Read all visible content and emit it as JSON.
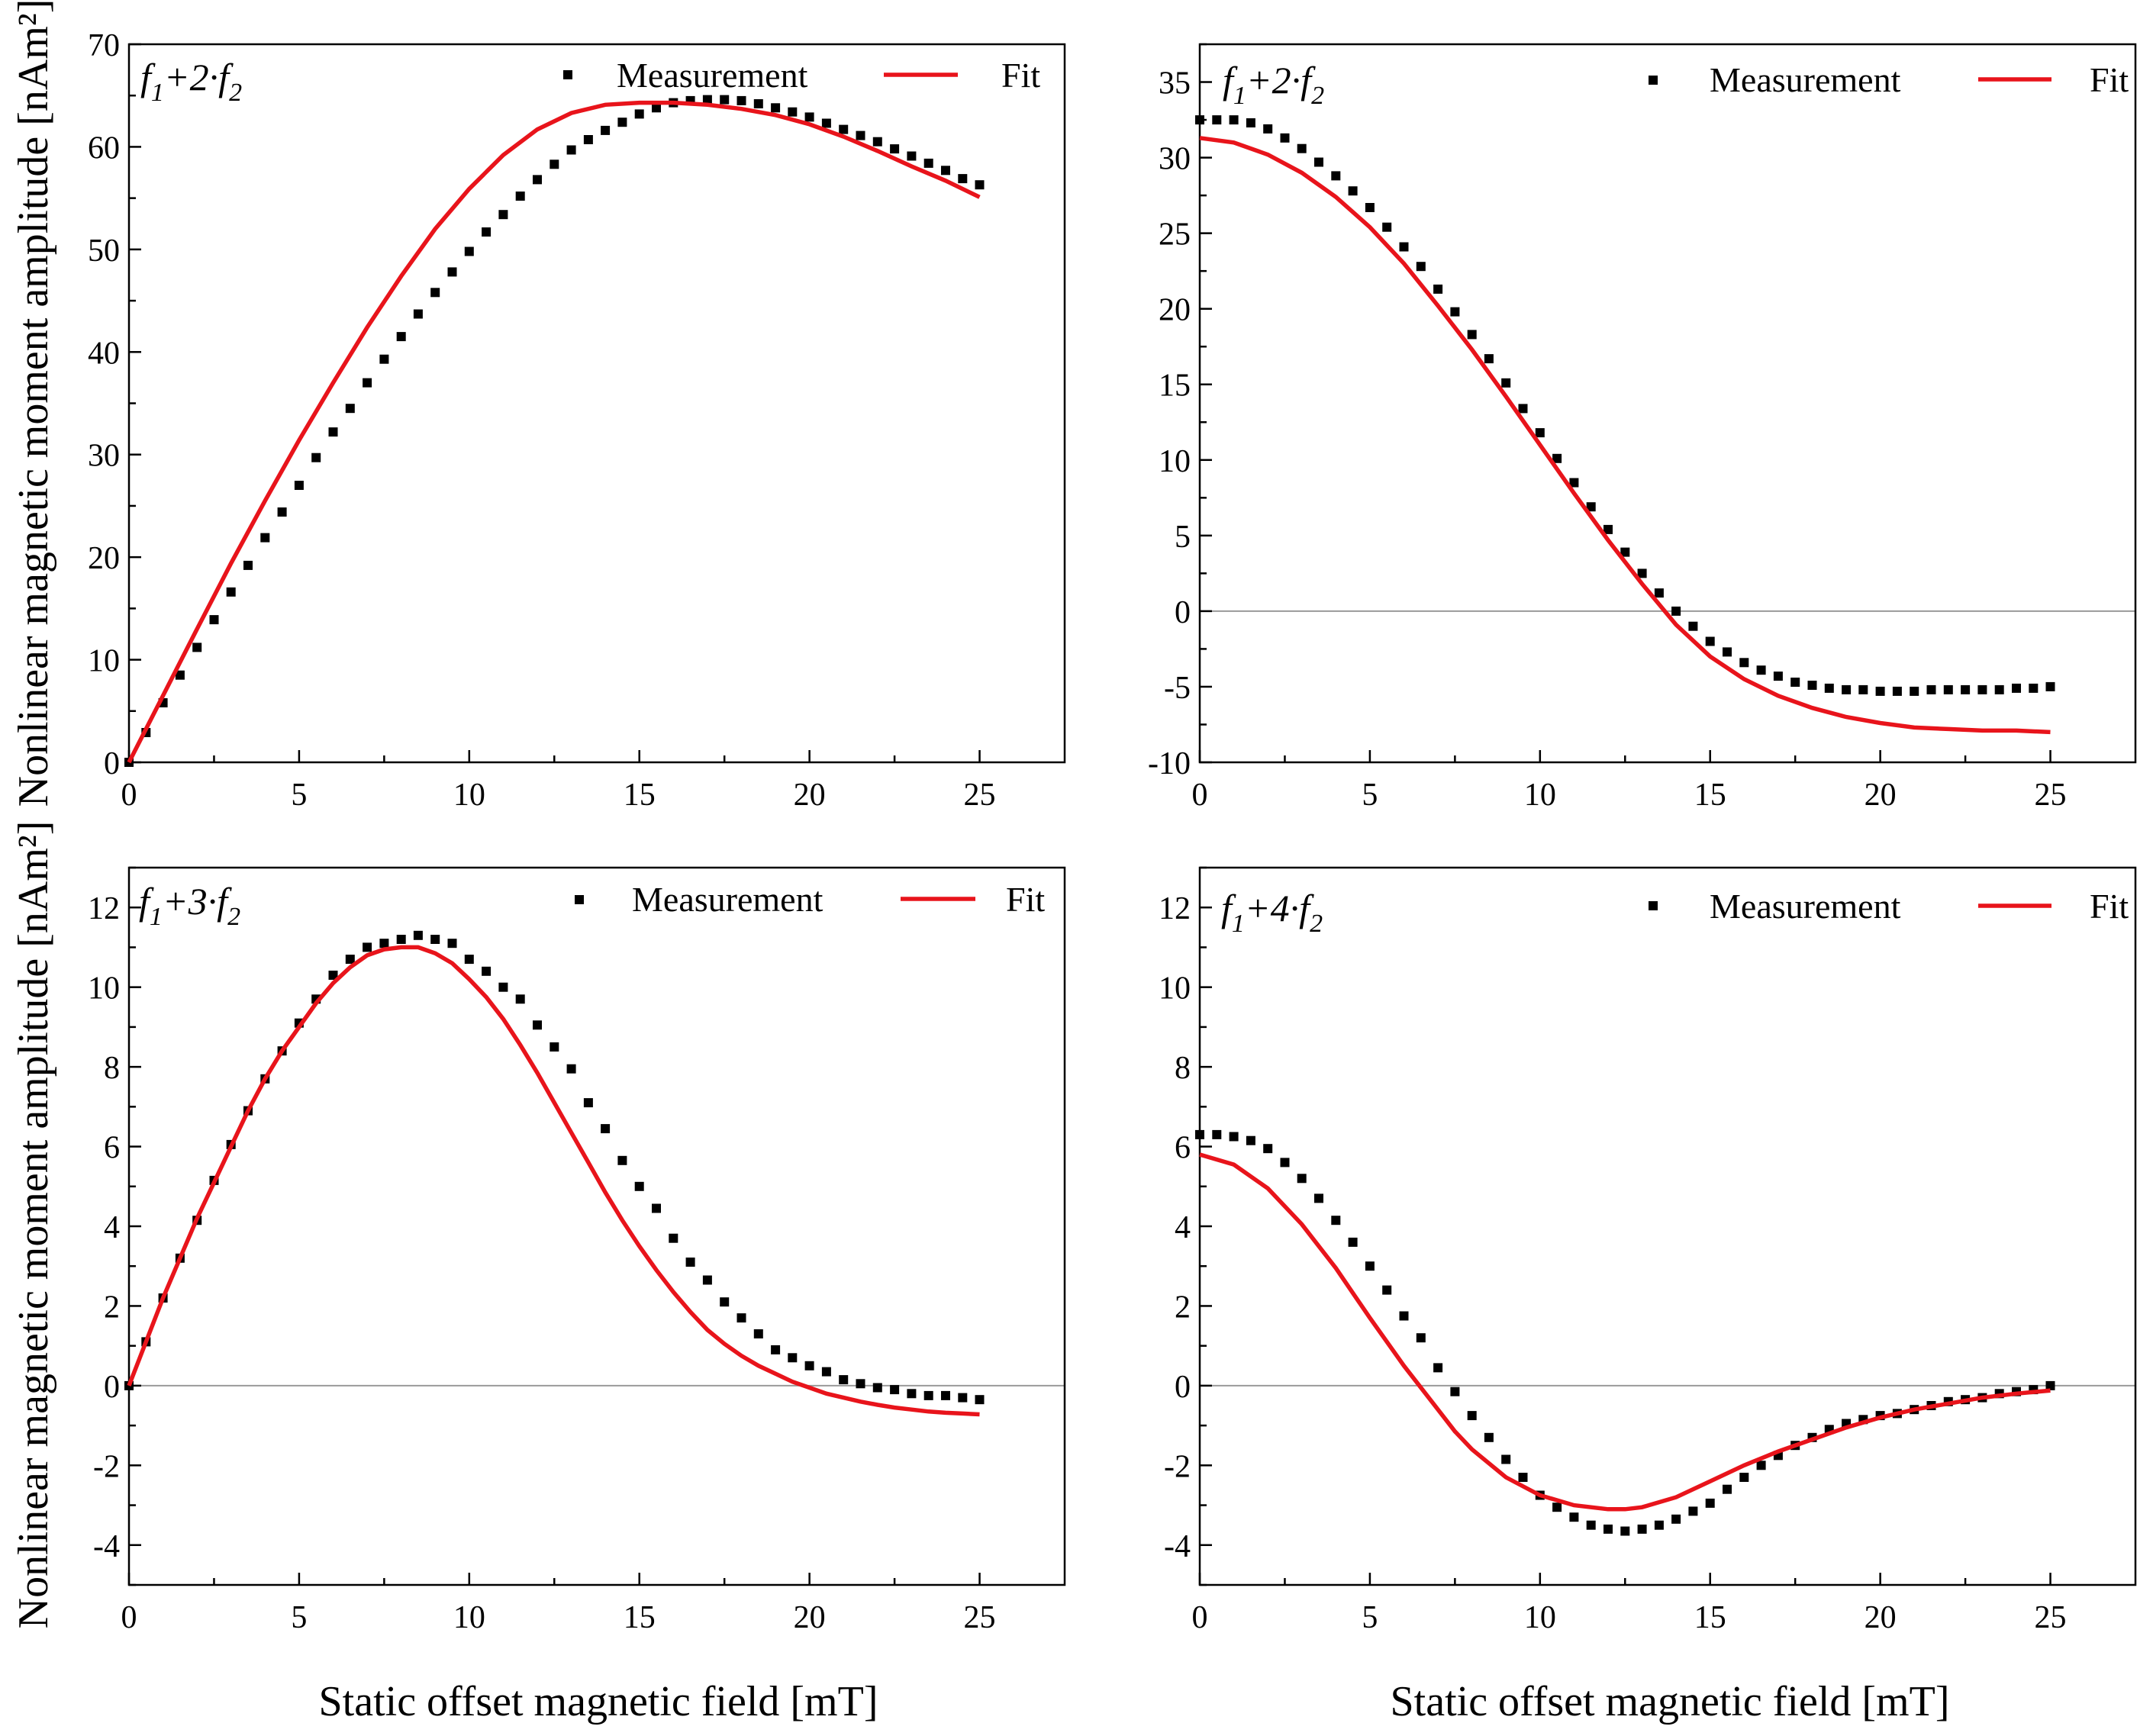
{
  "colors": {
    "measurement": "#000000",
    "fit": "#e8141b",
    "zero_line": "#9a9a9a"
  },
  "legend": {
    "measurement": "Measurement",
    "fit": "Fit"
  },
  "labels": {
    "ylabel": "Nonlinear magnetic moment amplitude [nAm²]",
    "xlabel": "Static offset magnetic field [mT]"
  },
  "chart_data": [
    {
      "id": "p1",
      "type": "scatter",
      "title": {
        "f1": "f",
        "s1": "1",
        "mid": "+2·",
        "f2": "f",
        "s2": "2"
      },
      "xlim": [
        0,
        27.5
      ],
      "ylim": [
        0,
        70
      ],
      "xticks": [
        0,
        5,
        10,
        15,
        20,
        25
      ],
      "yticks": [
        0,
        10,
        20,
        30,
        40,
        50,
        60,
        70
      ],
      "zero_line": false,
      "legend_position": "top-right",
      "series": [
        {
          "name": "Measurement",
          "kind": "points",
          "x": [
            0,
            0.5,
            1,
            1.5,
            2,
            2.5,
            3,
            3.5,
            4,
            4.5,
            5,
            5.5,
            6,
            6.5,
            7,
            7.5,
            8,
            8.5,
            9,
            9.5,
            10,
            10.5,
            11,
            11.5,
            12,
            12.5,
            13,
            13.5,
            14,
            14.5,
            15,
            15.5,
            16,
            16.5,
            17,
            17.5,
            18,
            18.5,
            19,
            19.5,
            20,
            20.5,
            21,
            21.5,
            22,
            22.5,
            23,
            23.5,
            24,
            24.5,
            25
          ],
          "y": [
            0,
            2.9,
            5.8,
            8.5,
            11.2,
            13.9,
            16.6,
            19.2,
            21.9,
            24.4,
            27.0,
            29.7,
            32.2,
            34.5,
            37.0,
            39.3,
            41.5,
            43.7,
            45.8,
            47.8,
            49.8,
            51.7,
            53.4,
            55.2,
            56.8,
            58.3,
            59.7,
            60.7,
            61.6,
            62.4,
            63.2,
            63.8,
            64.3,
            64.5,
            64.6,
            64.6,
            64.5,
            64.2,
            63.8,
            63.4,
            62.9,
            62.3,
            61.7,
            61.1,
            60.5,
            59.8,
            59.1,
            58.4,
            57.7,
            56.9,
            56.3
          ]
        },
        {
          "name": "Fit",
          "kind": "line",
          "x": [
            0,
            1,
            2,
            3,
            4,
            5,
            6,
            7,
            8,
            9,
            10,
            11,
            12,
            13,
            14,
            15,
            16,
            17,
            18,
            19,
            20,
            21,
            22,
            23,
            24,
            25
          ],
          "y": [
            0,
            6.5,
            13.0,
            19.4,
            25.5,
            31.4,
            37.0,
            42.4,
            47.4,
            52.0,
            55.9,
            59.2,
            61.7,
            63.3,
            64.1,
            64.3,
            64.3,
            64.1,
            63.7,
            63.1,
            62.2,
            61.0,
            59.6,
            58.1,
            56.7,
            55.1
          ]
        }
      ]
    },
    {
      "id": "p2",
      "type": "scatter",
      "title": {
        "f1": "f",
        "s1": "1",
        "mid": "+2·",
        "f2": "f",
        "s2": "2"
      },
      "xlim": [
        0,
        27.5
      ],
      "ylim": [
        -10,
        37.5
      ],
      "xticks": [
        0,
        5,
        10,
        15,
        20,
        25
      ],
      "yticks": [
        -10,
        -5,
        0,
        5,
        10,
        15,
        20,
        25,
        30,
        35
      ],
      "zero_line": true,
      "legend_position": "top-right",
      "series": [
        {
          "name": "Measurement",
          "kind": "points",
          "x": [
            0,
            0.5,
            1,
            1.5,
            2,
            2.5,
            3,
            3.5,
            4,
            4.5,
            5,
            5.5,
            6,
            6.5,
            7,
            7.5,
            8,
            8.5,
            9,
            9.5,
            10,
            10.5,
            11,
            11.5,
            12,
            12.5,
            13,
            13.5,
            14,
            14.5,
            15,
            15.5,
            16,
            16.5,
            17,
            17.5,
            18,
            18.5,
            19,
            19.5,
            20,
            20.5,
            21,
            21.5,
            22,
            22.5,
            23,
            23.5,
            24,
            24.5,
            25
          ],
          "y": [
            32.5,
            32.5,
            32.5,
            32.3,
            31.9,
            31.3,
            30.6,
            29.7,
            28.8,
            27.8,
            26.7,
            25.4,
            24.1,
            22.8,
            21.3,
            19.8,
            18.3,
            16.7,
            15.1,
            13.4,
            11.8,
            10.1,
            8.5,
            6.9,
            5.4,
            3.9,
            2.5,
            1.2,
            0.0,
            -1.0,
            -2.0,
            -2.7,
            -3.4,
            -3.9,
            -4.3,
            -4.7,
            -4.9,
            -5.1,
            -5.2,
            -5.2,
            -5.3,
            -5.3,
            -5.3,
            -5.2,
            -5.2,
            -5.2,
            -5.2,
            -5.2,
            -5.1,
            -5.1,
            -5.0
          ]
        },
        {
          "name": "Fit",
          "kind": "line",
          "x": [
            0,
            1,
            2,
            3,
            4,
            5,
            6,
            7,
            8,
            9,
            10,
            11,
            12,
            13,
            14,
            15,
            16,
            17,
            18,
            19,
            20,
            21,
            22,
            23,
            24,
            25
          ],
          "y": [
            31.3,
            31.0,
            30.2,
            29.0,
            27.4,
            25.4,
            23.0,
            20.2,
            17.3,
            14.2,
            11.0,
            7.8,
            4.7,
            1.8,
            -0.9,
            -3.0,
            -4.5,
            -5.6,
            -6.4,
            -7.0,
            -7.4,
            -7.7,
            -7.8,
            -7.9,
            -7.9,
            -8.0
          ]
        }
      ]
    },
    {
      "id": "p3",
      "type": "scatter",
      "title": {
        "f1": "f",
        "s1": "1",
        "mid": "+3·",
        "f2": "f",
        "s2": "2"
      },
      "xlim": [
        0,
        27.5
      ],
      "ylim": [
        -5,
        13
      ],
      "xticks": [
        0,
        5,
        10,
        15,
        20,
        25
      ],
      "yticks": [
        -4,
        -2,
        0,
        2,
        4,
        6,
        8,
        10,
        12
      ],
      "zero_line": true,
      "legend_position": "top-right",
      "series": [
        {
          "name": "Measurement",
          "kind": "points",
          "x": [
            0,
            0.5,
            1,
            1.5,
            2,
            2.5,
            3,
            3.5,
            4,
            4.5,
            5,
            5.5,
            6,
            6.5,
            7,
            7.5,
            8,
            8.5,
            9,
            9.5,
            10,
            10.5,
            11,
            11.5,
            12,
            12.5,
            13,
            13.5,
            14,
            14.5,
            15,
            15.5,
            16,
            16.5,
            17,
            17.5,
            18,
            18.5,
            19,
            19.5,
            20,
            20.5,
            21,
            21.5,
            22,
            22.5,
            23,
            23.5,
            24,
            24.5,
            25
          ],
          "y": [
            0,
            1.1,
            2.2,
            3.2,
            4.15,
            5.15,
            6.05,
            6.9,
            7.7,
            8.4,
            9.1,
            9.7,
            10.3,
            10.7,
            11.0,
            11.1,
            11.2,
            11.3,
            11.2,
            11.1,
            10.7,
            10.4,
            10.0,
            9.7,
            9.05,
            8.5,
            7.95,
            7.1,
            6.45,
            5.65,
            5.0,
            4.45,
            3.7,
            3.1,
            2.65,
            2.1,
            1.7,
            1.3,
            0.9,
            0.7,
            0.5,
            0.35,
            0.15,
            0.05,
            -0.05,
            -0.1,
            -0.2,
            -0.25,
            -0.25,
            -0.3,
            -0.35
          ]
        },
        {
          "name": "Fit",
          "kind": "line",
          "x": [
            0,
            0.5,
            1,
            1.5,
            2,
            2.5,
            3,
            3.5,
            4,
            4.5,
            5,
            5.5,
            6,
            6.5,
            7,
            7.5,
            8,
            8.5,
            9,
            9.5,
            10,
            10.5,
            11,
            11.5,
            12,
            12.5,
            13,
            13.5,
            14,
            14.5,
            15,
            15.5,
            16,
            16.5,
            17,
            17.5,
            18,
            18.5,
            19,
            19.5,
            20,
            20.5,
            21,
            21.5,
            22,
            22.5,
            23,
            23.5,
            24,
            24.5,
            25
          ],
          "y": [
            0,
            1.1,
            2.2,
            3.2,
            4.2,
            5.1,
            6.0,
            6.9,
            7.7,
            8.4,
            9.0,
            9.6,
            10.1,
            10.5,
            10.8,
            10.95,
            11.0,
            11.0,
            10.85,
            10.6,
            10.2,
            9.75,
            9.2,
            8.55,
            7.85,
            7.1,
            6.35,
            5.6,
            4.85,
            4.15,
            3.5,
            2.9,
            2.35,
            1.85,
            1.4,
            1.05,
            0.75,
            0.5,
            0.3,
            0.1,
            -0.05,
            -0.2,
            -0.3,
            -0.4,
            -0.48,
            -0.55,
            -0.6,
            -0.65,
            -0.68,
            -0.7,
            -0.72
          ]
        }
      ]
    },
    {
      "id": "p4",
      "type": "scatter",
      "title": {
        "f1": "f",
        "s1": "1",
        "mid": "+4·",
        "f2": "f",
        "s2": "2"
      },
      "xlim": [
        0,
        27.5
      ],
      "ylim": [
        -5,
        13
      ],
      "xticks": [
        0,
        5,
        10,
        15,
        20,
        25
      ],
      "yticks": [
        -4,
        -2,
        0,
        2,
        4,
        6,
        8,
        10,
        12
      ],
      "zero_line": true,
      "legend_position": "top-right",
      "series": [
        {
          "name": "Measurement",
          "kind": "points",
          "x": [
            0,
            0.5,
            1,
            1.5,
            2,
            2.5,
            3,
            3.5,
            4,
            4.5,
            5,
            5.5,
            6,
            6.5,
            7,
            7.5,
            8,
            8.5,
            9,
            9.5,
            10,
            10.5,
            11,
            11.5,
            12,
            12.5,
            13,
            13.5,
            14,
            14.5,
            15,
            15.5,
            16,
            16.5,
            17,
            17.5,
            18,
            18.5,
            19,
            19.5,
            20,
            20.5,
            21,
            21.5,
            22,
            22.5,
            23,
            23.5,
            24,
            24.5,
            25
          ],
          "y": [
            6.3,
            6.3,
            6.25,
            6.15,
            5.95,
            5.6,
            5.2,
            4.7,
            4.15,
            3.6,
            3.0,
            2.4,
            1.75,
            1.2,
            0.45,
            -0.15,
            -0.75,
            -1.3,
            -1.85,
            -2.3,
            -2.75,
            -3.05,
            -3.3,
            -3.5,
            -3.6,
            -3.65,
            -3.6,
            -3.5,
            -3.35,
            -3.15,
            -2.95,
            -2.6,
            -2.3,
            -2.0,
            -1.75,
            -1.5,
            -1.3,
            -1.1,
            -0.95,
            -0.85,
            -0.75,
            -0.7,
            -0.6,
            -0.5,
            -0.4,
            -0.35,
            -0.3,
            -0.2,
            -0.15,
            -0.1,
            0.0
          ]
        },
        {
          "name": "Fit",
          "kind": "line",
          "x": [
            0,
            1,
            2,
            3,
            4,
            5,
            6,
            7,
            7.5,
            8,
            9,
            10,
            11,
            12,
            12.5,
            13,
            14,
            15,
            16,
            17,
            18,
            19,
            20,
            21,
            22,
            23,
            24,
            25
          ],
          "y": [
            5.8,
            5.55,
            4.95,
            4.05,
            2.95,
            1.7,
            0.5,
            -0.6,
            -1.15,
            -1.6,
            -2.3,
            -2.75,
            -3.0,
            -3.1,
            -3.1,
            -3.05,
            -2.8,
            -2.4,
            -2.0,
            -1.65,
            -1.35,
            -1.05,
            -0.8,
            -0.6,
            -0.45,
            -0.3,
            -0.2,
            -0.12
          ]
        }
      ]
    }
  ]
}
